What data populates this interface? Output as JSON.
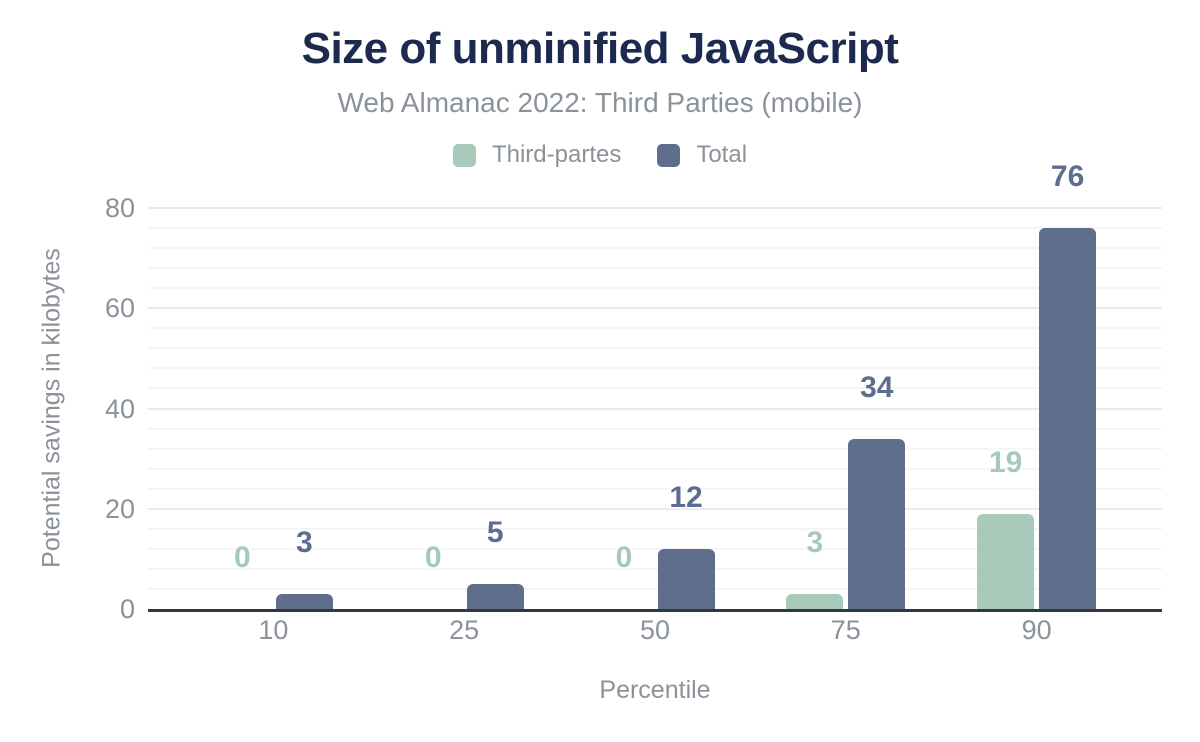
{
  "header": {
    "title": "Size of unminified JavaScript",
    "subtitle": "Web Almanac 2022: Third Parties (mobile)"
  },
  "chart_data": {
    "type": "bar",
    "title": "Size of unminified JavaScript",
    "subtitle": "Web Almanac 2022: Third Parties (mobile)",
    "categories": [
      "10",
      "25",
      "50",
      "75",
      "90"
    ],
    "series": [
      {
        "name": "Third-partes",
        "color": "#a8cabb",
        "label_color": "#a5cab9",
        "values": [
          0,
          0,
          0,
          3,
          19
        ]
      },
      {
        "name": "Total",
        "color": "#5f6e8d",
        "label_color": "#5c6d90",
        "values": [
          3,
          5,
          12,
          34,
          76
        ]
      }
    ],
    "xlabel": "Percentile",
    "ylabel": "Potential savings in kilobytes",
    "ylim": [
      0,
      80
    ],
    "yticks": [
      0,
      20,
      40,
      60,
      80
    ],
    "tick_interval": 20,
    "minor_tick_interval": 4,
    "grid": true,
    "legend_position": "top"
  },
  "colors": {
    "title": "#1b2a4e",
    "muted": "#8b9299",
    "axis": "#35383b",
    "grid_minor": "#f5f5f5",
    "grid_major": "#eaeaea"
  }
}
